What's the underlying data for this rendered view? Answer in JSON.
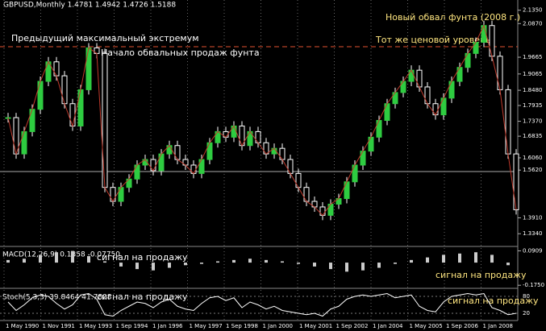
{
  "chart_data": {
    "type": "candlestick",
    "header": "GBPUSD,Monthly  1.4781 1.4942 1.4726 1.5188",
    "annotations": [
      "Предыдущий максимальный экстремум",
      "Начало обвальных продаж фунта",
      "Новый обвал фунта (2008 г.)",
      "Тот же ценовой уровень"
    ],
    "close": [
      1.75,
      1.62,
      1.7,
      1.78,
      1.88,
      1.95,
      1.9,
      1.8,
      1.72,
      1.85,
      2.0,
      1.98,
      1.5,
      1.45,
      1.5,
      1.53,
      1.58,
      1.6,
      1.56,
      1.62,
      1.65,
      1.6,
      1.58,
      1.55,
      1.6,
      1.66,
      1.7,
      1.68,
      1.72,
      1.65,
      1.7,
      1.66,
      1.62,
      1.64,
      1.6,
      1.55,
      1.5,
      1.45,
      1.43,
      1.4,
      1.44,
      1.46,
      1.52,
      1.58,
      1.63,
      1.68,
      1.74,
      1.8,
      1.84,
      1.88,
      1.92,
      1.86,
      1.8,
      1.76,
      1.82,
      1.88,
      1.93,
      1.98,
      2.02,
      2.08,
      1.97,
      1.85,
      1.62,
      1.42
    ],
    "ylim": [
      1.3,
      2.16
    ],
    "yticks": [
      {
        "value": 2.135,
        "label": "2.1350"
      },
      {
        "value": 2.087,
        "label": "2.0870"
      },
      {
        "value": 1.9665,
        "label": "1.9665"
      },
      {
        "value": 1.9065,
        "label": "1.9065"
      },
      {
        "value": 1.848,
        "label": "1.8480"
      },
      {
        "value": 1.7935,
        "label": "1.7935"
      },
      {
        "value": 1.737,
        "label": "1.7370"
      },
      {
        "value": 1.6835,
        "label": "1.6835"
      },
      {
        "value": 1.606,
        "label": "1.6060"
      },
      {
        "value": 1.562,
        "label": "1.5620"
      },
      {
        "value": 1.391,
        "label": "1.3910"
      },
      {
        "value": 1.334,
        "label": "1.3340"
      }
    ],
    "xlabels": [
      "1 May 1990",
      "1 Nov 1991",
      "1 May 1993",
      "1 Sep 1994",
      "1 Jan 1996",
      "1 May 1997",
      "1 Sep 1998",
      "1 Jan 2000",
      "1 May 2001",
      "1 Sep 2002",
      "1 Jan 2004",
      "1 May 2005",
      "1 Sep 2006",
      "1 Jan 2008"
    ],
    "macd": {
      "label": "MACD(12,26,9) 0.1358 -0.07750",
      "signal_text": "сигнал на продажу",
      "signal_text_2": "сигнал на продажу",
      "ylim": [
        -0.18,
        0.1
      ],
      "yticks": [
        {
          "value": 0.0909,
          "label": "0.0909"
        },
        {
          "value": -0.175,
          "label": "-0.1750"
        }
      ],
      "values": [
        0.02,
        0.03,
        0.06,
        0.08,
        0.09,
        0.05,
        0.01,
        -0.03,
        -0.05,
        -0.06,
        -0.04,
        -0.02,
        -0.01,
        0.01,
        0.02,
        0.03,
        0.02,
        0.01,
        -0.01,
        -0.03,
        -0.05,
        -0.07,
        -0.06,
        -0.04,
        -0.01,
        0.02,
        0.04,
        0.06,
        0.07,
        0.08,
        0.06,
        -0.02
      ]
    },
    "stoch": {
      "label": "Stoch(5,3,3) 39.8464 41.7808",
      "signal_text": "сигнал на продажу",
      "signal_text_2": "сигнал на продажу",
      "ylim": [
        0,
        100
      ],
      "yticks": [
        80,
        20
      ],
      "values": [
        60,
        30,
        50,
        75,
        85,
        80,
        55,
        35,
        50,
        85,
        90,
        70,
        15,
        10,
        30,
        45,
        60,
        55,
        40,
        60,
        70,
        45,
        35,
        30,
        55,
        75,
        80,
        65,
        75,
        40,
        60,
        50,
        35,
        45,
        30,
        25,
        20,
        15,
        20,
        10,
        35,
        45,
        70,
        80,
        85,
        80,
        85,
        90,
        75,
        80,
        85,
        45,
        30,
        25,
        60,
        80,
        85,
        90,
        85,
        90,
        40,
        30,
        15,
        20
      ]
    }
  }
}
